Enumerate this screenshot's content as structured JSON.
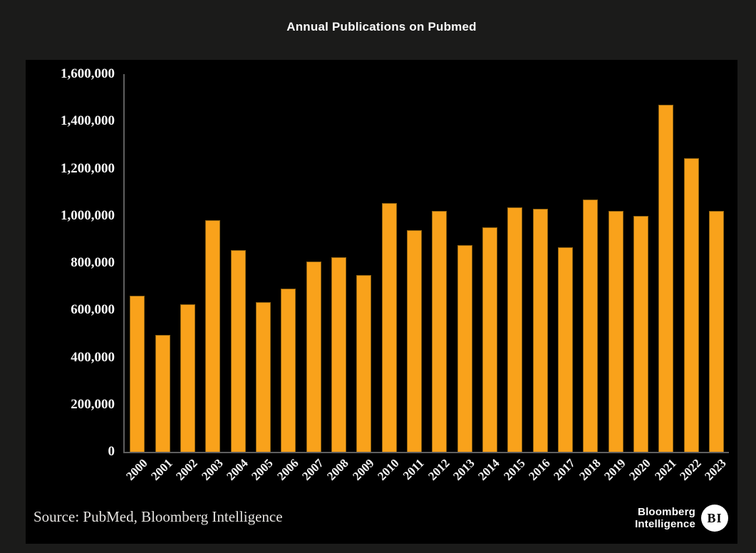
{
  "title": "Annual Publications on Pubmed",
  "source": "Source: PubMed, Bloomberg Intelligence",
  "logo": {
    "line1": "Bloomberg",
    "line2": "Intelligence",
    "badge": "BI"
  },
  "colors": {
    "outer_background": "#1B1B1A",
    "panel_background": "#000000",
    "bar": "#F9A21B",
    "bar_border": "#8F6210",
    "axis": "#5F5F5F",
    "tick_text": "#F8F8F8",
    "title_text": "#FBFBFB",
    "source_text": "#E6E4E1"
  },
  "chart_data": {
    "type": "bar",
    "title": "Annual Publications on Pubmed",
    "categories": [
      "2000",
      "2001",
      "2002",
      "2003",
      "2004",
      "2005",
      "2006",
      "2007",
      "2008",
      "2009",
      "2010",
      "2011",
      "2012",
      "2013",
      "2014",
      "2015",
      "2016",
      "2017",
      "2018",
      "2019",
      "2020",
      "2021",
      "2022",
      "2023"
    ],
    "values": [
      660000,
      495000,
      625000,
      980000,
      855000,
      635000,
      690000,
      805000,
      825000,
      750000,
      1055000,
      940000,
      1020000,
      875000,
      950000,
      1035000,
      1030000,
      865000,
      1070000,
      1020000,
      1000000,
      1470000,
      1245000,
      1020000
    ],
    "xlabel": "",
    "ylabel": "",
    "ylim": [
      0,
      1600000
    ],
    "ytick_step": 200000,
    "ytick_labels": [
      "0",
      "200,000",
      "400,000",
      "600,000",
      "800,000",
      "1,000,000",
      "1,200,000",
      "1,400,000",
      "1,600,000"
    ],
    "grid": false,
    "legend": null
  }
}
